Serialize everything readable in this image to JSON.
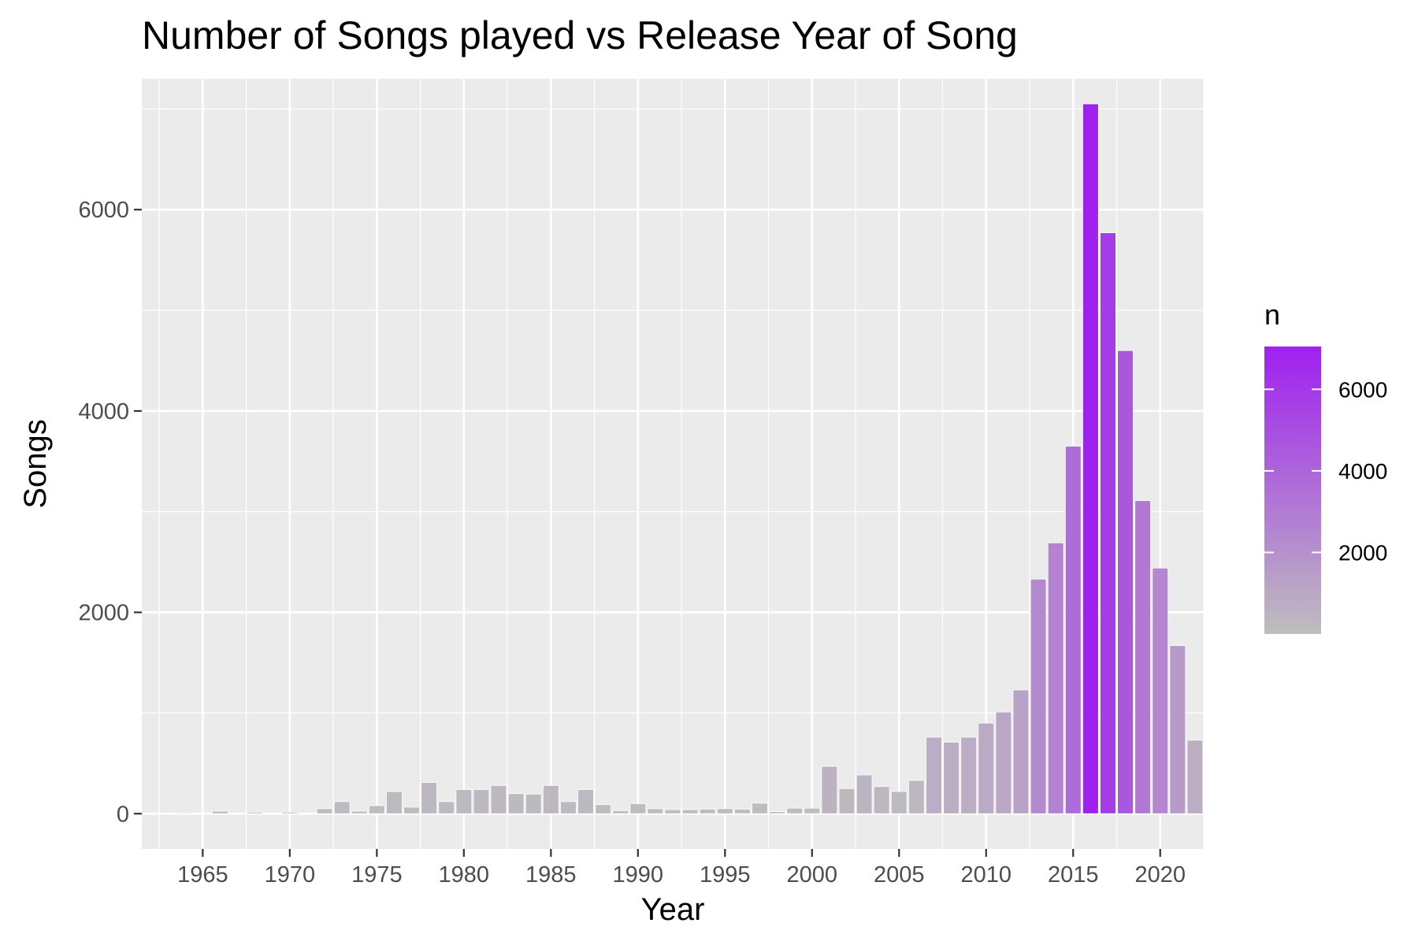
{
  "chart_data": {
    "type": "bar",
    "title": "Number of Songs played vs Release Year of Song",
    "xlabel": "Year",
    "ylabel": "Songs",
    "xlim": [
      1961.5,
      2022.5
    ],
    "ylim": [
      -350,
      7300
    ],
    "x_ticks": [
      1965,
      1970,
      1975,
      1980,
      1985,
      1990,
      1995,
      2000,
      2005,
      2010,
      2015,
      2020
    ],
    "y_ticks": [
      0,
      2000,
      4000,
      6000
    ],
    "grid": true,
    "legend": {
      "title": "n",
      "position": "right",
      "ticks": [
        2000,
        4000,
        6000
      ],
      "low_color": "#bebebe",
      "high_color": "#a020f0",
      "range": [
        1,
        7050
      ]
    },
    "x": [
      1962,
      1964,
      1966,
      1968,
      1970,
      1972,
      1973,
      1974,
      1975,
      1976,
      1977,
      1978,
      1979,
      1980,
      1981,
      1982,
      1983,
      1984,
      1985,
      1986,
      1987,
      1988,
      1989,
      1990,
      1991,
      1992,
      1993,
      1994,
      1995,
      1996,
      1997,
      1998,
      1999,
      2000,
      2001,
      2002,
      2003,
      2004,
      2005,
      2006,
      2007,
      2008,
      2009,
      2010,
      2011,
      2012,
      2013,
      2014,
      2015,
      2016,
      2017,
      2018,
      2019,
      2020,
      2021,
      2022
    ],
    "values": [
      5,
      8,
      25,
      15,
      15,
      50,
      120,
      25,
      80,
      220,
      65,
      310,
      120,
      240,
      240,
      280,
      200,
      195,
      280,
      120,
      240,
      90,
      30,
      100,
      50,
      40,
      40,
      45,
      50,
      45,
      105,
      20,
      55,
      55,
      470,
      250,
      385,
      270,
      220,
      330,
      760,
      710,
      760,
      900,
      1010,
      1230,
      2330,
      2690,
      3650,
      7050,
      5770,
      4600,
      3110,
      2440,
      1670,
      730
    ]
  }
}
